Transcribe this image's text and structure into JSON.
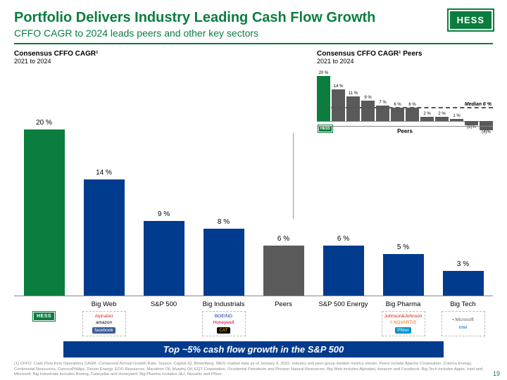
{
  "header": {
    "title": "Portfolio Delivers Industry Leading Cash Flow Growth",
    "subtitle": "CFFO CAGR to 2024 leads peers and other key sectors",
    "logo_text": "HESS"
  },
  "colors": {
    "hess_green": "#0b7d3e",
    "blue": "#003b8e",
    "grey": "#5a5a5a",
    "axis": "#888888"
  },
  "main_chart": {
    "title": "Consensus CFFO CAGR¹",
    "subtitle": "2021 to 2024",
    "y_max": 22,
    "bars": [
      {
        "label": "20 %",
        "value": 20,
        "color": "#0b7d3e",
        "category": "",
        "logos_type": "hess"
      },
      {
        "label": "14 %",
        "value": 14,
        "color": "#003b8e",
        "category": "Big Web",
        "brands": [
          {
            "text": "Alphabet",
            "color": "#d93025"
          },
          {
            "text": "amazon",
            "color": "#000"
          },
          {
            "text": "facebook",
            "color": "#fff",
            "bg": "#3b5998"
          }
        ]
      },
      {
        "label": "9 %",
        "value": 9,
        "color": "#003b8e",
        "category": "S&P 500",
        "brands": []
      },
      {
        "label": "8 %",
        "value": 8,
        "color": "#003b8e",
        "category": "Big Industrials",
        "brands": [
          {
            "text": "BOEING",
            "color": "#0033a0"
          },
          {
            "text": "Honeywell",
            "color": "#e4002b"
          },
          {
            "text": "CAT",
            "color": "#ffcd00",
            "bg": "#000"
          }
        ]
      },
      {
        "label": "6 %",
        "value": 6,
        "color": "#5a5a5a",
        "category": "Peers",
        "brands": []
      },
      {
        "label": "6 %",
        "value": 6,
        "color": "#003b8e",
        "category": "S&P 500 Energy",
        "brands": []
      },
      {
        "label": "5 %",
        "value": 5,
        "color": "#003b8e",
        "category": "Big Pharma",
        "brands": [
          {
            "text": "Johnson&Johnson",
            "color": "#d51900"
          },
          {
            "text": "◊ NOVARTIS",
            "color": "#e37222"
          },
          {
            "text": "Pfizer",
            "color": "#fff",
            "bg": "#0093d0"
          }
        ]
      },
      {
        "label": "3 %",
        "value": 3,
        "color": "#003b8e",
        "category": "Big Tech",
        "brands": [
          {
            "text": "▪ Microsoft",
            "color": "#5e5e5e"
          },
          {
            "text": "",
            "color": "#000"
          },
          {
            "text": "intel",
            "color": "#0071c5"
          }
        ]
      }
    ]
  },
  "peers_chart": {
    "title": "Consensus CFFO CAGR¹ Peers",
    "subtitle": "2021 to 2024",
    "median_label": "Median 6 %",
    "median_value": 6,
    "caption": "Peers",
    "y_max": 22,
    "bars": [
      {
        "label": "20 %",
        "value": 20,
        "color": "#0b7d3e"
      },
      {
        "label": "14 %",
        "value": 14,
        "color": "#5a5a5a"
      },
      {
        "label": "11 %",
        "value": 11,
        "color": "#5a5a5a"
      },
      {
        "label": "9 %",
        "value": 9,
        "color": "#5a5a5a"
      },
      {
        "label": "7 %",
        "value": 7,
        "color": "#5a5a5a"
      },
      {
        "label": "6 %",
        "value": 6,
        "color": "#5a5a5a"
      },
      {
        "label": "6 %",
        "value": 6,
        "color": "#5a5a5a"
      },
      {
        "label": "2 %",
        "value": 2,
        "color": "#5a5a5a"
      },
      {
        "label": "2 %",
        "value": 2,
        "color": "#5a5a5a"
      },
      {
        "label": "1 %",
        "value": 1,
        "color": "#5a5a5a"
      },
      {
        "label": "(2)%",
        "value": -2,
        "color": "#5a5a5a"
      },
      {
        "label": "(4)%",
        "value": -4,
        "color": "#5a5a5a"
      }
    ]
  },
  "banner": "Top ~5% cash flow growth in the S&P 500",
  "footnote": "(1) CFFO: Cash Flow from Operations CAGR: Compound Annual Growth Rate. Source: Capital IQ, Bloomberg, IBES; market data as of January 4, 2022. Industry and peer group median metrics shown. Peers include Apache Corporation, Coterra Energy, Continental Resources, ConocoPhillips, Devon Energy, EOG Resources, Marathon Oil, Murphy Oil, EQT Corporation, Occidental Petroleum and Pioneer Natural Resources. Big Web includes Alphabet, Amazon and Facebook. Big Tech includes Apple, Intel and Microsoft. Big Industrials includes Boeing, Caterpillar and Honeywell. Big Pharma includes J&J, Novartis and Pfizer.",
  "page_number": "19"
}
